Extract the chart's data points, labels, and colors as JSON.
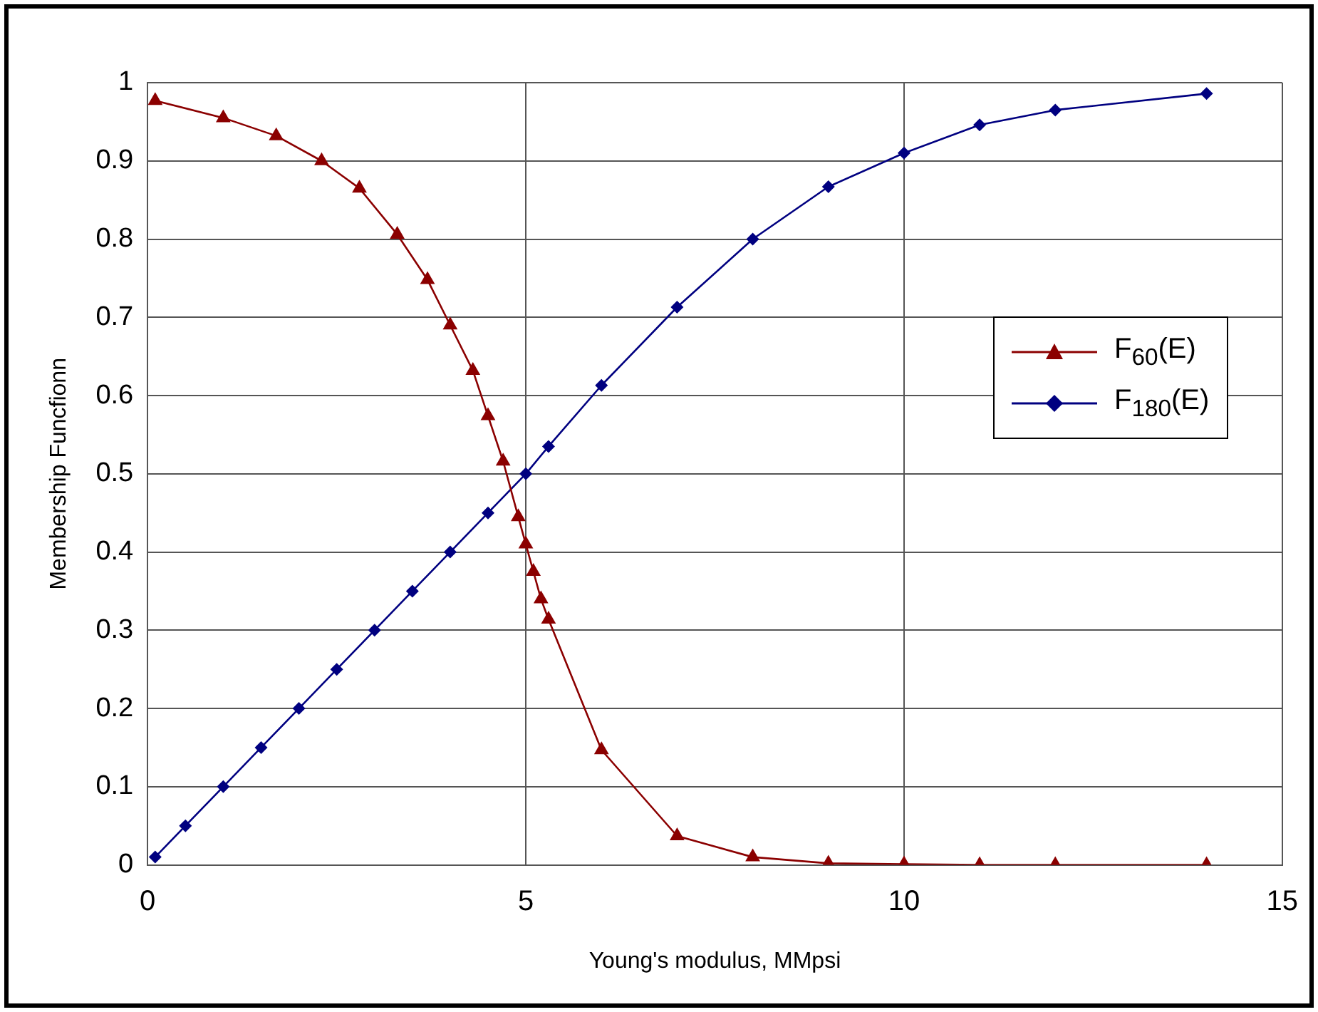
{
  "chart_data": {
    "type": "line",
    "xlabel": "Young's modulus, MMpsi",
    "ylabel": "Membership Funcfionn",
    "xlim": [
      0,
      15
    ],
    "xticks": [
      0,
      5,
      10,
      15
    ],
    "ylim": [
      0,
      1
    ],
    "yticks": [
      0,
      0.1,
      0.2,
      0.3,
      0.4,
      0.5,
      0.6,
      0.7,
      0.8,
      0.9,
      1
    ],
    "grid": true,
    "legend": "right",
    "line_style": "solid",
    "series": [
      {
        "name": "F$_{60}$(E)",
        "color": "#8b0000",
        "marker": "triangle",
        "x": [
          0.1,
          1.0,
          1.7,
          2.3,
          2.8,
          3.3,
          3.7,
          4.0,
          4.3,
          4.5,
          4.7,
          4.9,
          5.0,
          5.1,
          5.2,
          5.3,
          6,
          7,
          8,
          9,
          10,
          11,
          12,
          14
        ],
        "values": [
          0.977,
          0.955,
          0.932,
          0.9,
          0.865,
          0.806,
          0.748,
          0.69,
          0.632,
          0.574,
          0.516,
          0.445,
          0.41,
          0.375,
          0.34,
          0.314,
          0.147,
          0.037,
          0.01,
          0.002,
          0.001,
          0,
          0,
          0
        ]
      },
      {
        "name": "F$_{180}$(E)",
        "color": "#000080",
        "marker": "diamond",
        "x": [
          0.1,
          0.5,
          1.0,
          1.5,
          2.0,
          2.5,
          3.0,
          3.5,
          4.0,
          4.5,
          5.0,
          5.3,
          6,
          7,
          8,
          9,
          10,
          11,
          12,
          14
        ],
        "values": [
          0.01,
          0.05,
          0.1,
          0.15,
          0.2,
          0.25,
          0.3,
          0.35,
          0.4,
          0.45,
          0.5,
          0.535,
          0.613,
          0.713,
          0.8,
          0.867,
          0.91,
          0.946,
          0.965,
          0.986
        ]
      }
    ]
  }
}
